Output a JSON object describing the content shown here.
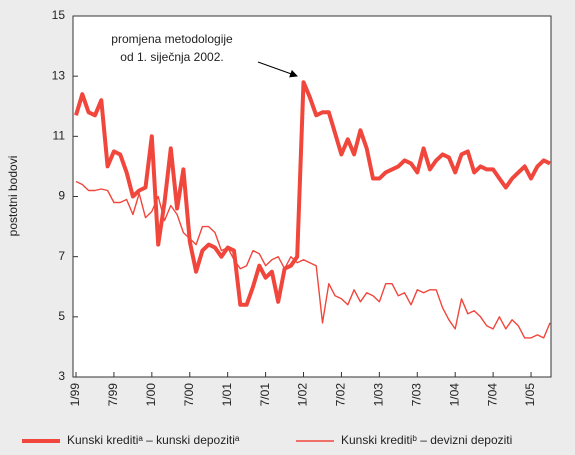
{
  "chart_data": {
    "type": "line",
    "ylabel": "postotni bodovi",
    "annotation": [
      "promjena metodologije",
      "od 1. siječnja 2002."
    ],
    "categories": [
      "1/99",
      null,
      null,
      null,
      null,
      null,
      "7/99",
      null,
      null,
      null,
      null,
      null,
      "1/00",
      null,
      null,
      null,
      null,
      null,
      "7/00",
      null,
      null,
      null,
      null,
      null,
      "1/01",
      null,
      null,
      null,
      null,
      null,
      "7/01",
      null,
      null,
      null,
      null,
      null,
      "1/02",
      null,
      null,
      null,
      null,
      null,
      "7/02",
      null,
      null,
      null,
      null,
      null,
      "1/03",
      null,
      null,
      null,
      null,
      null,
      "7/03",
      null,
      null,
      null,
      null,
      null,
      "1/04",
      null,
      null,
      null,
      null,
      null,
      "7/04",
      null,
      null,
      null,
      null,
      null,
      "1/05",
      null,
      null,
      null
    ],
    "ylim": [
      3,
      15
    ],
    "yticks": [
      3,
      5,
      7,
      9,
      11,
      13,
      15
    ],
    "series": [
      {
        "name": "Kunski kreditiᵃ – kunski depozitiᵃ",
        "color": "#f0463c",
        "width": 4,
        "values": [
          11.7,
          12.4,
          11.8,
          11.7,
          12.2,
          10.0,
          10.5,
          10.4,
          9.8,
          9.0,
          9.2,
          9.3,
          11.0,
          7.4,
          8.8,
          10.6,
          8.6,
          9.9,
          7.5,
          6.5,
          7.2,
          7.4,
          7.3,
          7.0,
          7.3,
          7.2,
          5.4,
          5.4,
          6.0,
          6.7,
          6.3,
          6.5,
          5.5,
          6.6,
          6.7,
          7.0,
          12.8,
          12.3,
          11.7,
          11.8,
          11.8,
          11.1,
          10.4,
          10.9,
          10.4,
          11.2,
          10.6,
          9.6,
          9.6,
          9.8,
          9.9,
          10.0,
          10.2,
          10.1,
          9.8,
          10.6,
          9.9,
          10.2,
          10.4,
          10.3,
          9.8,
          10.4,
          10.5,
          9.8,
          10.0,
          9.9,
          9.9,
          9.6,
          9.3,
          9.6,
          9.8,
          10.0,
          9.6,
          10.0,
          10.2,
          10.1
        ]
      },
      {
        "name": "Kunski kreditiᵇ – devizni depoziti",
        "color": "#f0463c",
        "width": 1.4,
        "values": [
          9.5,
          9.4,
          9.2,
          9.2,
          9.25,
          9.2,
          8.8,
          8.8,
          8.9,
          8.4,
          9.1,
          8.3,
          8.5,
          9.0,
          8.2,
          8.7,
          8.4,
          7.8,
          7.6,
          7.4,
          8.0,
          8.0,
          7.8,
          7.2,
          7.3,
          6.9,
          6.6,
          6.7,
          7.2,
          7.1,
          6.7,
          6.9,
          7.0,
          6.6,
          7.0,
          6.8,
          6.9,
          6.8,
          6.7,
          4.8,
          6.1,
          5.7,
          5.6,
          5.4,
          5.9,
          5.5,
          5.8,
          5.7,
          5.5,
          6.1,
          6.1,
          5.7,
          5.8,
          5.4,
          5.9,
          5.8,
          5.9,
          5.9,
          5.3,
          4.9,
          4.6,
          5.6,
          5.1,
          5.2,
          5.0,
          4.7,
          4.6,
          5.0,
          4.6,
          4.9,
          4.7,
          4.3,
          4.3,
          4.4,
          4.3,
          4.8
        ]
      }
    ]
  }
}
